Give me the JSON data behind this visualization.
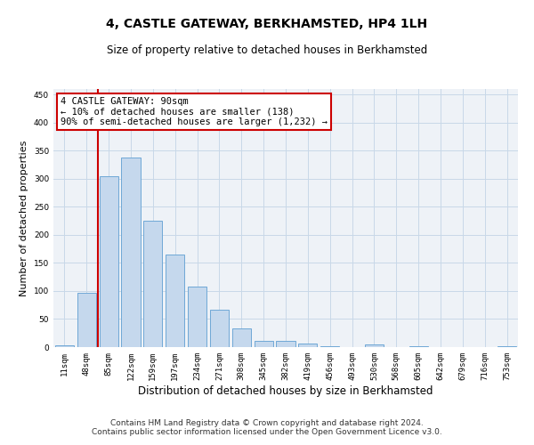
{
  "title": "4, CASTLE GATEWAY, BERKHAMSTED, HP4 1LH",
  "subtitle": "Size of property relative to detached houses in Berkhamsted",
  "xlabel": "Distribution of detached houses by size in Berkhamsted",
  "ylabel": "Number of detached properties",
  "bar_labels": [
    "11sqm",
    "48sqm",
    "85sqm",
    "122sqm",
    "159sqm",
    "197sqm",
    "234sqm",
    "271sqm",
    "308sqm",
    "345sqm",
    "382sqm",
    "419sqm",
    "456sqm",
    "493sqm",
    "530sqm",
    "568sqm",
    "605sqm",
    "642sqm",
    "679sqm",
    "716sqm",
    "753sqm"
  ],
  "bar_values": [
    3,
    97,
    305,
    338,
    225,
    165,
    108,
    67,
    34,
    11,
    11,
    7,
    2,
    0,
    4,
    0,
    2,
    0,
    0,
    0,
    2
  ],
  "bar_color": "#c5d8ed",
  "bar_edgecolor": "#6fa8d6",
  "vline_color": "#cc0000",
  "vline_pos": 1.5,
  "annotation_text": "4 CASTLE GATEWAY: 90sqm\n← 10% of detached houses are smaller (138)\n90% of semi-detached houses are larger (1,232) →",
  "annotation_box_color": "#ffffff",
  "annotation_box_edgecolor": "#cc0000",
  "ylim": [
    0,
    460
  ],
  "yticks": [
    0,
    50,
    100,
    150,
    200,
    250,
    300,
    350,
    400,
    450
  ],
  "grid_color": "#c8d8e8",
  "background_color": "#eef2f7",
  "footer": "Contains HM Land Registry data © Crown copyright and database right 2024.\nContains public sector information licensed under the Open Government Licence v3.0.",
  "title_fontsize": 10,
  "subtitle_fontsize": 8.5,
  "ylabel_fontsize": 8,
  "xlabel_fontsize": 8.5,
  "tick_fontsize": 6.5,
  "footer_fontsize": 6.5
}
